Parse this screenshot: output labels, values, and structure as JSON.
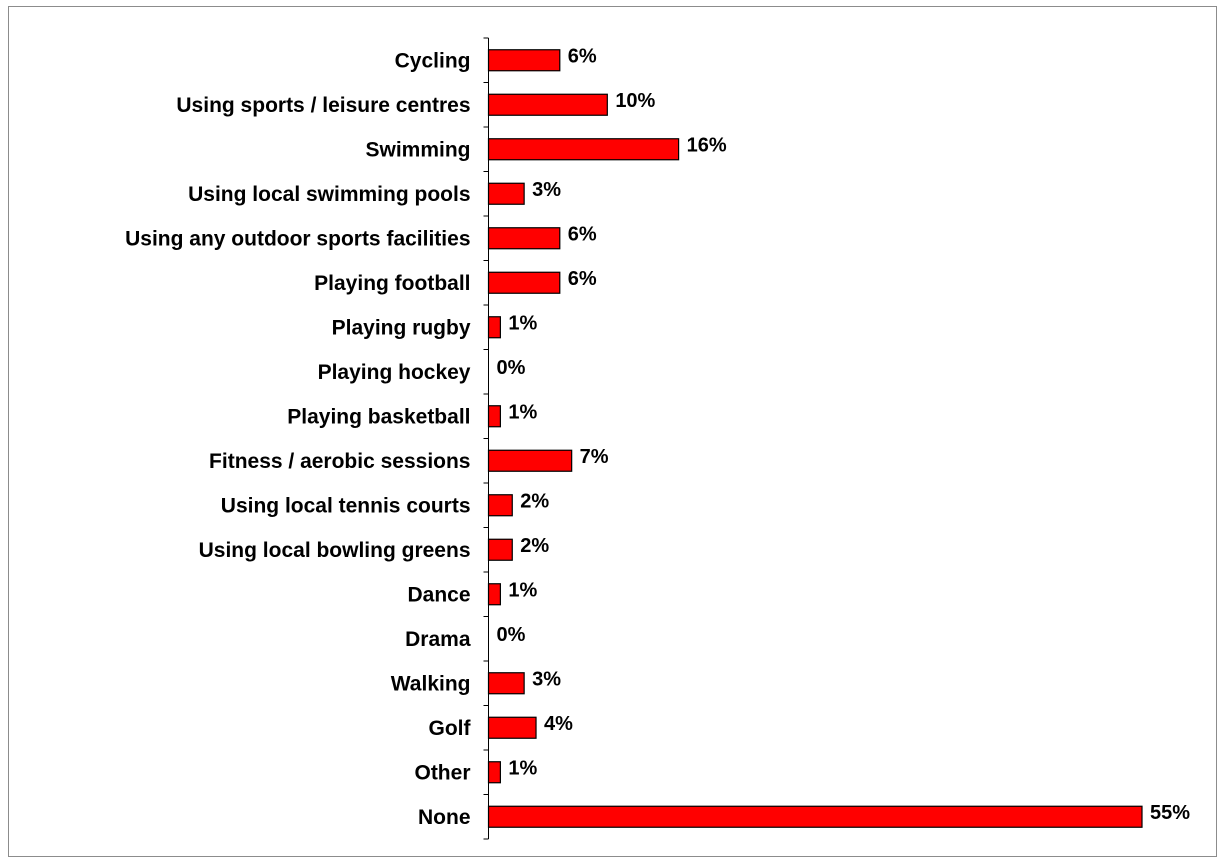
{
  "chart_data": {
    "type": "bar",
    "orientation": "horizontal",
    "title": "",
    "xlabel": "",
    "ylabel": "",
    "categories": [
      "Cycling",
      "Using sports / leisure centres",
      "Swimming",
      "Using local swimming pools",
      "Using any outdoor sports facilities",
      "Playing football",
      "Playing rugby",
      "Playing hockey",
      "Playing basketball",
      "Fitness / aerobic sessions",
      "Using local tennis courts",
      "Using local bowling greens",
      "Dance",
      "Drama",
      "Walking",
      "Golf",
      "Other",
      "None"
    ],
    "values": [
      6,
      10,
      16,
      3,
      6,
      6,
      1,
      0,
      1,
      7,
      2,
      2,
      1,
      0,
      3,
      4,
      1,
      55
    ],
    "value_labels": [
      "6%",
      "10%",
      "16%",
      "3%",
      "6%",
      "6%",
      "1%",
      "0%",
      "1%",
      "7%",
      "2%",
      "2%",
      "1%",
      "0%",
      "3%",
      "4%",
      "1%",
      "55%"
    ],
    "xlim": [
      0,
      55
    ],
    "grid": false,
    "legend": "none",
    "bar_color": "#ff0000",
    "bar_outline_color": "#000000"
  }
}
